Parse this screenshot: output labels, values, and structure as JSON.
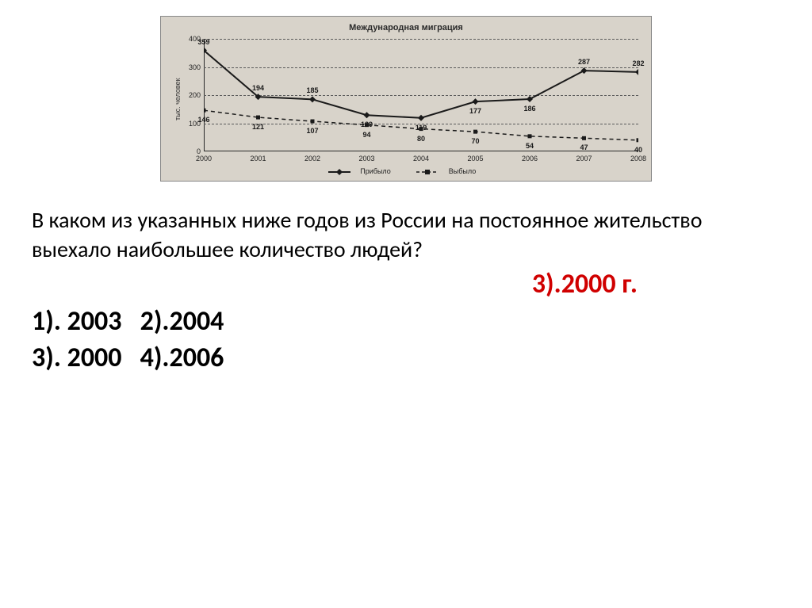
{
  "chart": {
    "type": "line",
    "title": "Международная миграция",
    "ylabel": "тыс. человек",
    "background_color": "#d8d3ca",
    "grid_color": "#5a5a5a",
    "axis_color": "#2a2a2a",
    "title_fontsize": 11,
    "label_fontsize": 9,
    "tick_fontsize": 9,
    "xlim": [
      2000,
      2008
    ],
    "ylim": [
      0,
      400
    ],
    "ytick_step": 100,
    "yticks": [
      0,
      100,
      200,
      300,
      400
    ],
    "categories": [
      "2000",
      "2001",
      "2002",
      "2003",
      "2004",
      "2005",
      "2006",
      "2007",
      "2008"
    ],
    "series": [
      {
        "name": "Прибыло",
        "color": "#1a1a1a",
        "line_width": 2,
        "marker": "diamond",
        "marker_size": 6,
        "dash": "solid",
        "values": [
          359,
          194,
          185,
          129,
          119,
          177,
          186,
          287,
          282
        ],
        "label_offsets": [
          "above",
          "above",
          "above",
          "below",
          "below",
          "below",
          "below",
          "above",
          "above"
        ]
      },
      {
        "name": "Выбыло",
        "color": "#1a1a1a",
        "line_width": 1.5,
        "marker": "square",
        "marker_size": 5,
        "dash": "dashed",
        "values": [
          146,
          121,
          107,
          94,
          80,
          70,
          54,
          47,
          40
        ],
        "label_offsets": [
          "below",
          "below",
          "below",
          "below",
          "below",
          "below",
          "below",
          "below",
          "below"
        ]
      }
    ]
  },
  "question": "В каком из указанных ниже годов из России на постоянное жительство выехало наибольшее количество людей?",
  "answer": "3).2000 г.",
  "options_line1": "1). 2003   2).2004",
  "options_line2": "3). 2000   4).2006"
}
